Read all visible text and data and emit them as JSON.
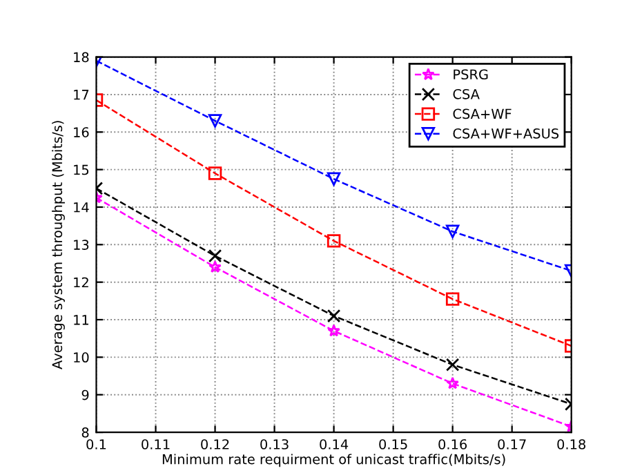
{
  "chart_data": {
    "type": "line",
    "xlabel": "Minimum rate requirment of unicast traffic(Mbits/s)",
    "ylabel": "Average system throughput (Mbits/s)",
    "x": [
      0.1,
      0.12,
      0.14,
      0.16,
      0.18
    ],
    "series": [
      {
        "name": "PSRG",
        "color": "#ff00ff",
        "marker": "star",
        "values": [
          14.25,
          12.4,
          10.7,
          9.3,
          8.15
        ]
      },
      {
        "name": "CSA",
        "color": "#000000",
        "marker": "cross",
        "values": [
          14.5,
          12.7,
          11.1,
          9.8,
          8.75
        ]
      },
      {
        "name": "CSA+WF",
        "color": "#ff0000",
        "marker": "square",
        "values": [
          16.85,
          14.9,
          13.1,
          11.55,
          10.3
        ]
      },
      {
        "name": "CSA+WF+ASUS",
        "color": "#0000ff",
        "marker": "triangle",
        "values": [
          17.9,
          16.3,
          14.75,
          13.35,
          12.3
        ]
      }
    ],
    "line_style": "dashed",
    "grid": true,
    "legend": "top right",
    "xlim": [
      0.1,
      0.18
    ],
    "xticks": [
      0.1,
      0.11,
      0.12,
      0.13,
      0.14,
      0.15,
      0.16,
      0.17,
      0.18
    ],
    "ylim": [
      8,
      18
    ],
    "yticks": [
      8,
      9,
      10,
      11,
      12,
      13,
      14,
      15,
      16,
      17,
      18
    ]
  }
}
